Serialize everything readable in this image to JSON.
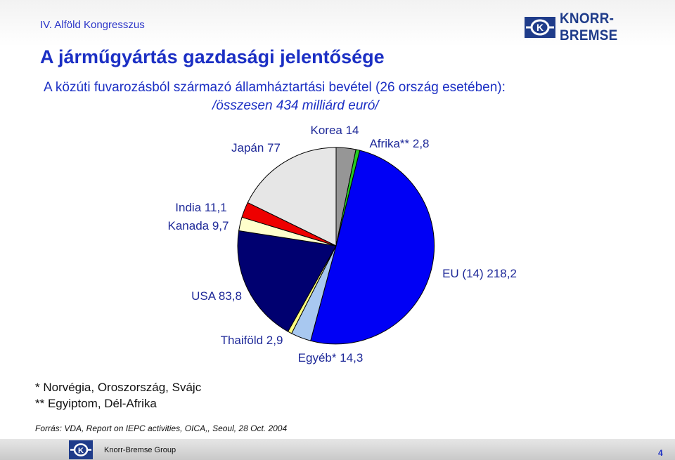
{
  "header": {
    "conference": "IV. Alföld Kongresszus",
    "brand": "KNORR-BREMSE",
    "logo_icon": "knorr-bremse-k-logo"
  },
  "slide": {
    "title": "A járműgyártás gazdasági jelentősége",
    "subtitle_line1": "A közúti fuvarozásból származó államháztartási bevétel (26 ország esetében):",
    "subtitle_line2": "/összesen 434 milliárd euró/"
  },
  "chart_data": {
    "type": "pie",
    "title": "",
    "slices": [
      {
        "label": "Korea 14",
        "name": "Korea",
        "value": 14,
        "color": "#969696"
      },
      {
        "label": "Afrika** 2,8",
        "name": "Afrika**",
        "value": 2.8,
        "color": "#22cc22"
      },
      {
        "label": "EU (14) 218,2",
        "name": "EU (14)",
        "value": 218.2,
        "color": "#0000f5"
      },
      {
        "label": "Egyéb* 14,3",
        "name": "Egyéb*",
        "value": 14.3,
        "color": "#a8c8f0"
      },
      {
        "label": "Thaiföld 2,9",
        "name": "Thaiföld",
        "value": 2.9,
        "color": "#ffff80"
      },
      {
        "label": "USA 83,8",
        "name": "USA",
        "value": 83.8,
        "color": "#000070"
      },
      {
        "label": "Kanada 9,7",
        "name": "Kanada",
        "value": 9.7,
        "color": "#ffffcc"
      },
      {
        "label": "India 11,1",
        "name": "India",
        "value": 11.1,
        "color": "#ee0000"
      },
      {
        "label": "Japán 77",
        "name": "Japán",
        "value": 77,
        "color": "#e6e6e6"
      }
    ],
    "slice_border_color": "#000000",
    "legend": "none",
    "label_color": "#1f2a99"
  },
  "notes": {
    "note1": "* Norvégia, Oroszország, Svájc",
    "note2": "** Egyiptom, Dél-Afrika"
  },
  "source": "Forrás: VDA, Report on IEPC activities, OICA,, Seoul, 28 Oct. 2004",
  "footer": {
    "group": "Knorr-Bremse Group",
    "page_number": "4"
  },
  "colors": {
    "title_blue": "#1b2fc4",
    "brand_blue": "#1f3c8a"
  }
}
